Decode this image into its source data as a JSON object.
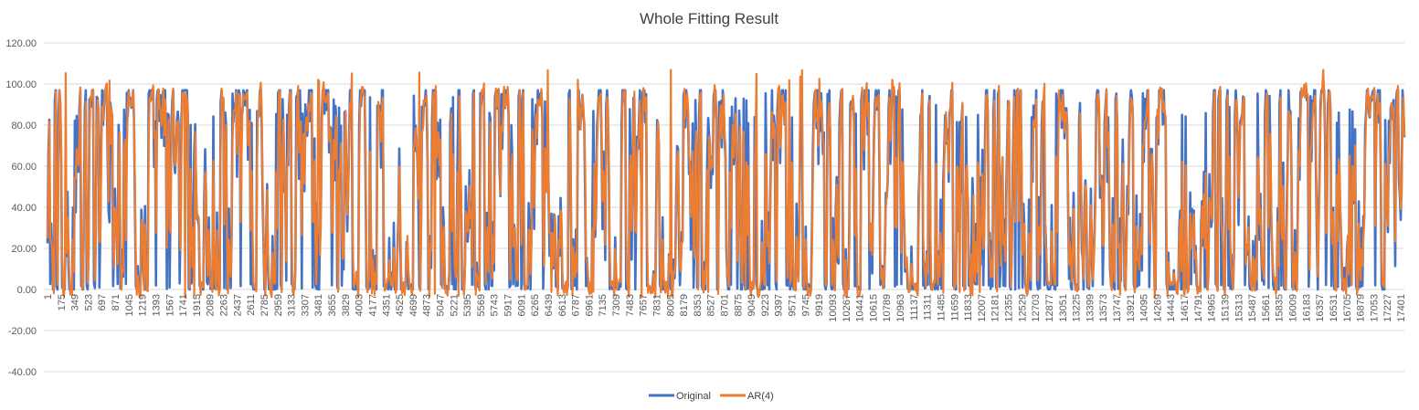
{
  "chart_data": {
    "type": "line",
    "title": "Whole Fitting Result",
    "xlabel": "",
    "ylabel": "",
    "ylim": [
      -40,
      120
    ],
    "xlim": [
      1,
      17500
    ],
    "yticks": [
      "-40.00",
      "-20.00",
      "0.00",
      "20.00",
      "40.00",
      "60.00",
      "80.00",
      "100.00",
      "120.00"
    ],
    "xticks": [
      "1",
      "175",
      "349",
      "523",
      "697",
      "871",
      "1045",
      "1219",
      "1393",
      "1567",
      "1741",
      "1915",
      "2089",
      "2263",
      "2437",
      "2611",
      "2785",
      "2959",
      "3133",
      "3307",
      "3481",
      "3655",
      "3829",
      "4003",
      "4177",
      "4351",
      "4525",
      "4699",
      "4873",
      "5047",
      "5221",
      "5395",
      "5569",
      "5743",
      "5917",
      "6091",
      "6265",
      "6439",
      "6613",
      "6787",
      "6961",
      "7135",
      "7309",
      "7483",
      "7657",
      "7831",
      "8005",
      "8179",
      "8353",
      "8527",
      "8701",
      "8875",
      "9049",
      "9223",
      "9397",
      "9571",
      "9745",
      "9919",
      "10093",
      "10267",
      "10441",
      "10615",
      "10789",
      "10963",
      "11137",
      "11311",
      "11485",
      "11659",
      "11833",
      "12007",
      "12181",
      "12355",
      "12529",
      "12703",
      "12877",
      "13051",
      "13225",
      "13399",
      "13573",
      "13747",
      "13921",
      "14095",
      "14269",
      "14443",
      "14617",
      "14791",
      "14965",
      "15139",
      "15313",
      "15487",
      "15661",
      "15835",
      "16009",
      "16183",
      "16357",
      "16531",
      "16705",
      "16879",
      "17053",
      "17227",
      "17401"
    ],
    "grid": true,
    "legend_position": "bottom",
    "series": [
      {
        "name": "Original",
        "color": "#4472C4"
      },
      {
        "name": "AR(4)",
        "color": "#ED7D31"
      }
    ],
    "n_points": 17500,
    "value_range": {
      "min": -5,
      "max": 108
    }
  }
}
